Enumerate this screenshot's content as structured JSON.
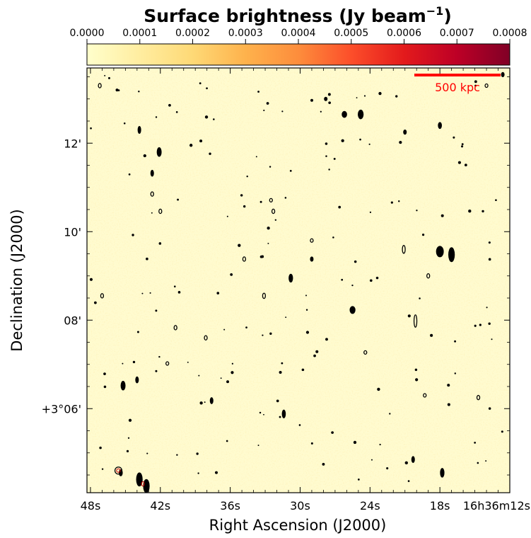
{
  "chart_data": {
    "type": "heatmap",
    "title": "Surface brightness (Jy beam$^{-1}$)",
    "title_main": "Surface brightness (Jy beam",
    "title_sup": "−1",
    "title_close": ")",
    "xlabel": "Right Ascension (J2000)",
    "ylabel": "Declination (J2000)",
    "colormap": "YlOrRd",
    "colorbar": {
      "range": [
        0.0,
        0.0008
      ],
      "tick_values": [
        0.0,
        0.0001,
        0.0002,
        0.0003,
        0.0004,
        0.0005,
        0.0006,
        0.0007,
        0.0008
      ],
      "tick_labels": [
        "0.0000",
        "0.0001",
        "0.0002",
        "0.0003",
        "0.0004",
        "0.0005",
        "0.0006",
        "0.0007",
        "0.0008"
      ],
      "placement": "top",
      "colors": [
        "#ffffcc",
        "#ffeda0",
        "#fed976",
        "#feb24c",
        "#fd8d3c",
        "#fc4e2a",
        "#e31a1c",
        "#bd0026",
        "#800026"
      ]
    },
    "x_axis": {
      "unit": "RA seconds",
      "range": [
        48.3,
        12.0
      ],
      "tick_values": [
        48,
        42,
        36,
        30,
        24,
        18,
        12
      ],
      "tick_labels": [
        "48s",
        "42s",
        "36s",
        "30s",
        "24s",
        "18s",
        "16h36m12s"
      ]
    },
    "y_axis": {
      "unit": "arcmin offset from +3°00'",
      "range": [
        4.1,
        13.7
      ],
      "tick_values": [
        6,
        8,
        10,
        12
      ],
      "tick_labels": [
        "+3°06'",
        "08'",
        "10'",
        "12'"
      ]
    },
    "background_level": 3e-05,
    "contour_color": "#000000",
    "contour_inner_color": "#cc0000",
    "scale_bar": {
      "label": "500 kpc",
      "color": "#ff0000",
      "placement": "top-right"
    },
    "sources": [
      {
        "x": 47.2,
        "y": 13.3,
        "rx": 0.12,
        "ry": 0.05,
        "type": "ring"
      },
      {
        "x": 43.8,
        "y": 12.3,
        "rx": 0.12,
        "ry": 0.08,
        "type": "filled"
      },
      {
        "x": 42.1,
        "y": 11.8,
        "rx": 0.18,
        "ry": 0.1,
        "type": "filled"
      },
      {
        "x": 42.7,
        "y": 11.32,
        "rx": 0.1,
        "ry": 0.07,
        "type": "filled"
      },
      {
        "x": 42.7,
        "y": 10.85,
        "rx": 0.1,
        "ry": 0.05,
        "type": "ring"
      },
      {
        "x": 42.0,
        "y": 10.46,
        "rx": 0.07,
        "ry": 0.05,
        "type": "ring"
      },
      {
        "x": 34.8,
        "y": 9.38,
        "rx": 0.1,
        "ry": 0.05,
        "type": "ring"
      },
      {
        "x": 32.3,
        "y": 10.46,
        "rx": 0.06,
        "ry": 0.05,
        "type": "ring"
      },
      {
        "x": 32.5,
        "y": 10.71,
        "rx": 0.05,
        "ry": 0.04,
        "type": "ring"
      },
      {
        "x": 30.8,
        "y": 8.95,
        "rx": 0.16,
        "ry": 0.09,
        "type": "filled"
      },
      {
        "x": 29.0,
        "y": 9.8,
        "rx": 0.1,
        "ry": 0.04,
        "type": "ring"
      },
      {
        "x": 29.0,
        "y": 9.38,
        "rx": 0.07,
        "ry": 0.05,
        "type": "filled"
      },
      {
        "x": 33.1,
        "y": 8.55,
        "rx": 0.09,
        "ry": 0.06,
        "type": "ring"
      },
      {
        "x": 26.2,
        "y": 12.65,
        "rx": 0.2,
        "ry": 0.07,
        "type": "filled"
      },
      {
        "x": 24.8,
        "y": 12.65,
        "rx": 0.22,
        "ry": 0.1,
        "type": "filled"
      },
      {
        "x": 25.5,
        "y": 8.23,
        "rx": 0.22,
        "ry": 0.08,
        "type": "filled"
      },
      {
        "x": 24.4,
        "y": 7.27,
        "rx": 0.1,
        "ry": 0.04,
        "type": "ring"
      },
      {
        "x": 21.1,
        "y": 9.6,
        "rx": 0.07,
        "ry": 0.09,
        "type": "ring"
      },
      {
        "x": 20.1,
        "y": 7.98,
        "rx": 0.12,
        "ry": 0.14,
        "type": "ring"
      },
      {
        "x": 18.0,
        "y": 9.55,
        "rx": 0.3,
        "ry": 0.12,
        "type": "filled"
      },
      {
        "x": 17.0,
        "y": 9.48,
        "rx": 0.25,
        "ry": 0.16,
        "type": "filled"
      },
      {
        "x": 18.0,
        "y": 12.4,
        "rx": 0.14,
        "ry": 0.07,
        "type": "filled"
      },
      {
        "x": 19.0,
        "y": 9.0,
        "rx": 0.08,
        "ry": 0.05,
        "type": "ring"
      },
      {
        "x": 14.0,
        "y": 13.3,
        "rx": 0.08,
        "ry": 0.04,
        "type": "ring"
      },
      {
        "x": 12.6,
        "y": 13.55,
        "rx": 0.12,
        "ry": 0.05,
        "type": "filled"
      },
      {
        "x": 45.2,
        "y": 6.52,
        "rx": 0.18,
        "ry": 0.1,
        "type": "filled"
      },
      {
        "x": 44.0,
        "y": 6.65,
        "rx": 0.12,
        "ry": 0.07,
        "type": "filled"
      },
      {
        "x": 37.6,
        "y": 6.18,
        "rx": 0.09,
        "ry": 0.07,
        "type": "filled"
      },
      {
        "x": 31.4,
        "y": 5.88,
        "rx": 0.14,
        "ry": 0.09,
        "type": "filled"
      },
      {
        "x": 19.3,
        "y": 6.3,
        "rx": 0.08,
        "ry": 0.04,
        "type": "ring"
      },
      {
        "x": 14.7,
        "y": 6.25,
        "rx": 0.08,
        "ry": 0.05,
        "type": "ring"
      },
      {
        "x": 17.8,
        "y": 4.55,
        "rx": 0.16,
        "ry": 0.1,
        "type": "filled"
      },
      {
        "x": 20.3,
        "y": 4.85,
        "rx": 0.09,
        "ry": 0.07,
        "type": "filled"
      },
      {
        "x": 45.6,
        "y": 4.6,
        "rx": 0.3,
        "ry": 0.08,
        "type": "ring"
      },
      {
        "x": 43.8,
        "y": 4.4,
        "rx": 0.25,
        "ry": 0.15,
        "type": "filled"
      },
      {
        "x": 43.2,
        "y": 4.25,
        "rx": 0.25,
        "ry": 0.15,
        "type": "filled"
      },
      {
        "x": 45.4,
        "y": 4.55,
        "rx": 0.14,
        "ry": 0.07,
        "type": "filled"
      },
      {
        "x": 40.7,
        "y": 7.83,
        "rx": 0.06,
        "ry": 0.05,
        "type": "ring"
      },
      {
        "x": 38.1,
        "y": 7.6,
        "rx": 0.1,
        "ry": 0.05,
        "type": "ring"
      },
      {
        "x": 41.4,
        "y": 7.02,
        "rx": 0.08,
        "ry": 0.04,
        "type": "ring"
      },
      {
        "x": 47.0,
        "y": 8.55,
        "rx": 0.08,
        "ry": 0.05,
        "type": "ring"
      },
      {
        "x": 27.8,
        "y": 13.0,
        "rx": 0.06,
        "ry": 0.04,
        "type": "filled"
      },
      {
        "x": 21.0,
        "y": 12.25,
        "rx": 0.06,
        "ry": 0.05,
        "type": "filled"
      }
    ]
  }
}
